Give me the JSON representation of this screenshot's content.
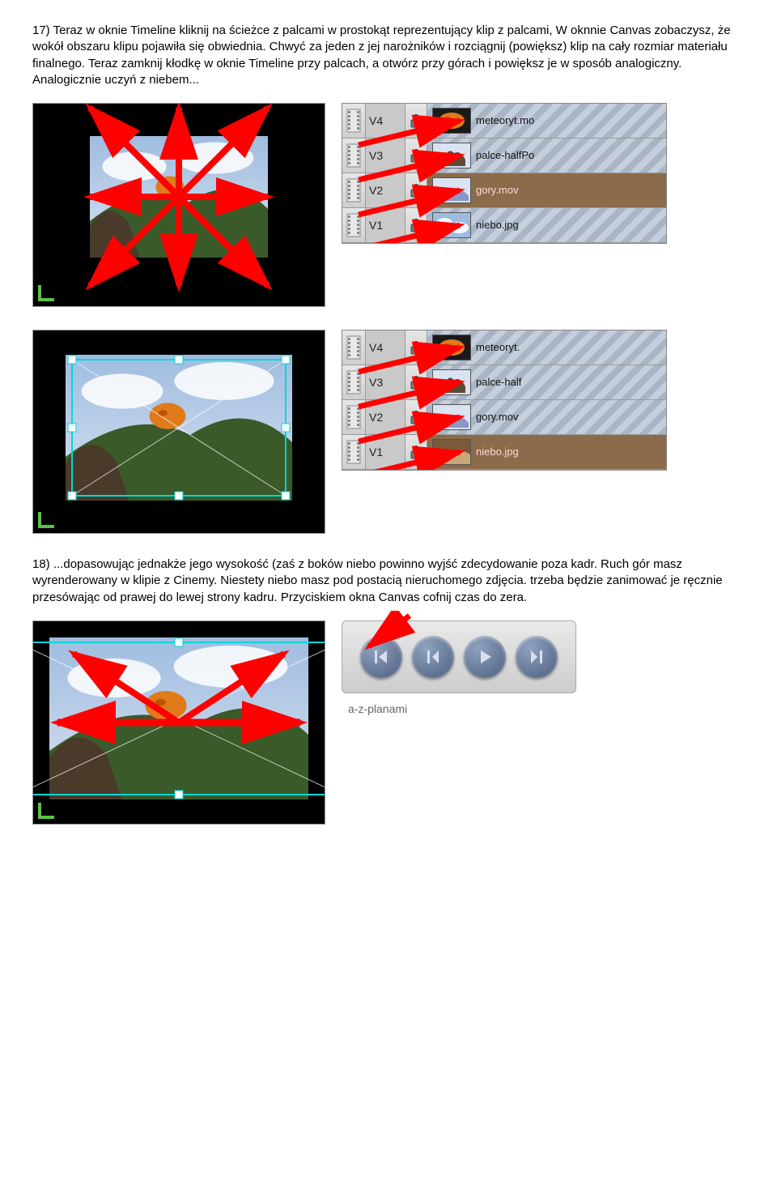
{
  "para17": "17) Teraz w oknie Timeline kliknij na ścieżce z palcami w prostokąt reprezentujący klip z palcami, W oknnie Canvas zobaczysz, że wokół obszaru klipu pojawiła się obwiednia. Chwyć za jeden z jej narożników i rozciągnij (powiększ) klip na cały rozmiar materiału finalnego. Teraz zamknij kłodkę w oknie Timeline przy palcach, a otwórz przy górach i powiększ je w sposób analogiczny. Analogicznie uczyń z niebem...",
  "para18": "18) ...dopasowując jednakże jego wysokość (zaś z boków niebo powinno wyjść zdecydowanie poza kadr. Ruch gór masz wyrenderowany w klipie z Cinemy. Niestety niebo masz pod postacią nieruchomego zdjęcia. trzeba będzie zanimować je ręcznie przesówając od prawej do lewej strony kadru. Przyciskiem okna Canvas cofnij czas do zera.",
  "tracksA": {
    "rows": [
      {
        "v": "V4",
        "locked": true,
        "hatched": true,
        "clip": "meteoryt.mo",
        "thumb": "meteor"
      },
      {
        "v": "V3",
        "locked": true,
        "hatched": true,
        "clip": "palce-halfPo",
        "thumb": "palce"
      },
      {
        "v": "V2",
        "locked": false,
        "hatched": false,
        "selected": true,
        "clip": "gory.mov",
        "thumb": "gory"
      },
      {
        "v": "V1",
        "locked": true,
        "hatched": true,
        "clip": "niebo.jpg",
        "thumb": "niebo"
      }
    ],
    "arrow_color": "#ff0000"
  },
  "tracksB": {
    "rows": [
      {
        "v": "V4",
        "locked": true,
        "hatched": true,
        "clip": "meteoryt.",
        "thumb": "meteor"
      },
      {
        "v": "V3",
        "locked": true,
        "hatched": true,
        "clip": "palce-half",
        "thumb": "palce"
      },
      {
        "v": "V2",
        "locked": true,
        "hatched": true,
        "clip": "gory.mov",
        "thumb": "gory"
      },
      {
        "v": "V1",
        "locked": false,
        "hatched": false,
        "selected": true,
        "clip": "niebo.jpg",
        "thumb": "niebo2"
      }
    ],
    "arrow_color": "#ff0000"
  },
  "canvas": {
    "bg_outer": "#000000",
    "sky_top": "#9fbce0",
    "sky_bot": "#d7e2f0",
    "mountain": "#3a5a2a",
    "meteor": "#e07a1a",
    "handle_color": "#00d7d7",
    "frame_green": "#5fbf4a",
    "arrow_color": "#ff0000"
  },
  "thumbs": {
    "meteor": {
      "bg": "#1a1a1a",
      "shape": "meteor",
      "c": "#e07a1a"
    },
    "palce": {
      "bg": "#d9e3f2",
      "shape": "palce",
      "c": "#5d4b3a"
    },
    "gory": {
      "bg": "#d9e3f2",
      "shape": "gory",
      "c": "#8a96c4"
    },
    "niebo": {
      "bg": "#9fbce0",
      "shape": "niebo",
      "c": "#ffffff"
    },
    "niebo2": {
      "bg": "#7a5a3a",
      "shape": "niebo2",
      "c": "#c9a878"
    }
  },
  "bottom_label": "a-z-planami"
}
